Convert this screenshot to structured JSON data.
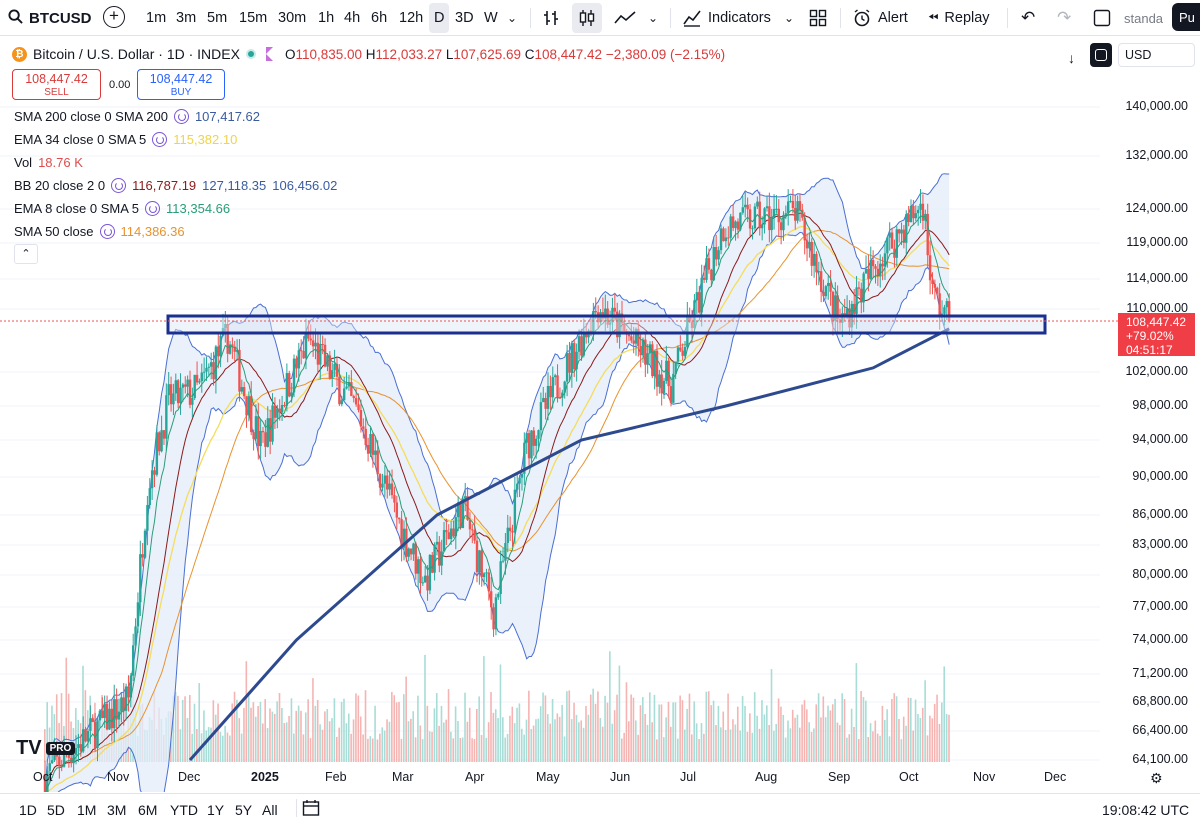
{
  "toolbar": {
    "symbol": "BTCUSD",
    "intervals": [
      "1m",
      "3m",
      "5m",
      "15m",
      "30m",
      "1h",
      "4h",
      "6h",
      "12h",
      "D",
      "3D",
      "W"
    ],
    "active_interval": "D",
    "indicators_label": "Indicators",
    "alert_label": "Alert",
    "replay_label": "Replay",
    "layout_label": "standa",
    "publish_label": "Pu"
  },
  "legend": {
    "title": "Bitcoin / U.S. Dollar · 1D · INDEX",
    "o_label": "O",
    "o": "110,835.00",
    "h_label": "H",
    "h": "112,033.27",
    "l_label": "L",
    "l": "107,625.69",
    "c_label": "C",
    "c": "108,447.42",
    "change": "−2,380.09 (−2.15%)",
    "sell_price": "108,447.42",
    "sell_label": "SELL",
    "spread": "0.00",
    "buy_price": "108,447.42",
    "buy_label": "BUY",
    "indicators": [
      {
        "label": "SMA 200 close 0 SMA 200",
        "values": [
          "107,417.62"
        ],
        "colors": [
          "#3a5ba0"
        ]
      },
      {
        "label": "EMA 34 close 0 SMA 5",
        "values": [
          "115,382.10"
        ],
        "colors": [
          "#f5dc5a"
        ]
      },
      {
        "label": "Vol",
        "values": [
          "18.76 K"
        ],
        "colors": [
          "#e04b4b"
        ]
      },
      {
        "label": "BB 20 close 2 0",
        "values": [
          "116,787.19",
          "127,118.35",
          "106,456.02"
        ],
        "colors": [
          "#8b1a1a",
          "#3a5ba0",
          "#3a5ba0"
        ]
      },
      {
        "label": "EMA 8 close 0 SMA 5",
        "values": [
          "113,354.66"
        ],
        "colors": [
          "#2a9d78"
        ]
      },
      {
        "label": "SMA 50 close",
        "values": [
          "114,386.36"
        ],
        "colors": [
          "#e8922e"
        ]
      }
    ]
  },
  "price_axis": {
    "currency": "USD",
    "ticks": [
      "140,000.00",
      "132,000.00",
      "124,000.00",
      "119,000.00",
      "114,000.00",
      "110,000.00",
      "102,000.00",
      "98,000.00",
      "94,000.00",
      "90,000.00",
      "86,000.00",
      "83,000.00",
      "80,000.00",
      "77,000.00",
      "74,000.00",
      "71,200.00",
      "68,800.00",
      "66,400.00",
      "64,100.00"
    ],
    "current_price": "108,447.42",
    "current_change": "+79.02%",
    "countdown": "04:51:17"
  },
  "time_axis": [
    "Oct",
    "Nov",
    "Dec",
    "2025",
    "Feb",
    "Mar",
    "Apr",
    "May",
    "Jun",
    "Jul",
    "Aug",
    "Sep",
    "Oct",
    "Nov",
    "Dec"
  ],
  "bottom": {
    "ranges": [
      "1D",
      "5D",
      "1M",
      "3M",
      "6M",
      "YTD",
      "1Y",
      "5Y",
      "All"
    ],
    "clock": "19:08:42 UTC"
  },
  "branding": {
    "logo": "TV",
    "pro": "PRO"
  },
  "colors": {
    "up": "#26a69a",
    "down": "#ef5350",
    "sma200": "#2e4a8f",
    "bb": "#4a6fd1",
    "bb_fill": "#e3ecfa",
    "zone": "#1a2f8f"
  },
  "chart_data": {
    "type": "candlestick",
    "symbol": "BTCUSD",
    "last_close": 108447.42,
    "support_zone": [
      107500,
      109800
    ],
    "anchors": [
      {
        "date": "2024-10-01",
        "price": 63000
      },
      {
        "date": "2024-11-05",
        "price": 69000
      },
      {
        "date": "2024-11-13",
        "price": 89000
      },
      {
        "date": "2024-11-22",
        "price": 98500
      },
      {
        "date": "2024-12-05",
        "price": 100000
      },
      {
        "date": "2024-12-17",
        "price": 106500
      },
      {
        "date": "2024-12-31",
        "price": 93500
      },
      {
        "date": "2025-01-20",
        "price": 106000
      },
      {
        "date": "2025-02-10",
        "price": 97000
      },
      {
        "date": "2025-02-28",
        "price": 84500
      },
      {
        "date": "2025-03-10",
        "price": 79500
      },
      {
        "date": "2025-03-26",
        "price": 87000
      },
      {
        "date": "2025-04-08",
        "price": 76500
      },
      {
        "date": "2025-04-22",
        "price": 93500
      },
      {
        "date": "2025-05-22",
        "price": 110500
      },
      {
        "date": "2025-06-22",
        "price": 100500
      },
      {
        "date": "2025-07-14",
        "price": 121500
      },
      {
        "date": "2025-08-13",
        "price": 123500
      },
      {
        "date": "2025-09-01",
        "price": 108000
      },
      {
        "date": "2025-09-18",
        "price": 117000
      },
      {
        "date": "2025-10-06",
        "price": 125000
      },
      {
        "date": "2025-10-10",
        "price": 112000
      },
      {
        "date": "2025-10-17",
        "price": 108447
      }
    ],
    "sma200": [
      {
        "date": "2024-12-01",
        "price": 64100
      },
      {
        "date": "2025-01-15",
        "price": 74000
      },
      {
        "date": "2025-03-15",
        "price": 86000
      },
      {
        "date": "2025-05-15",
        "price": 94000
      },
      {
        "date": "2025-07-15",
        "price": 98000
      },
      {
        "date": "2025-09-15",
        "price": 102500
      },
      {
        "date": "2025-10-17",
        "price": 107417
      }
    ]
  }
}
